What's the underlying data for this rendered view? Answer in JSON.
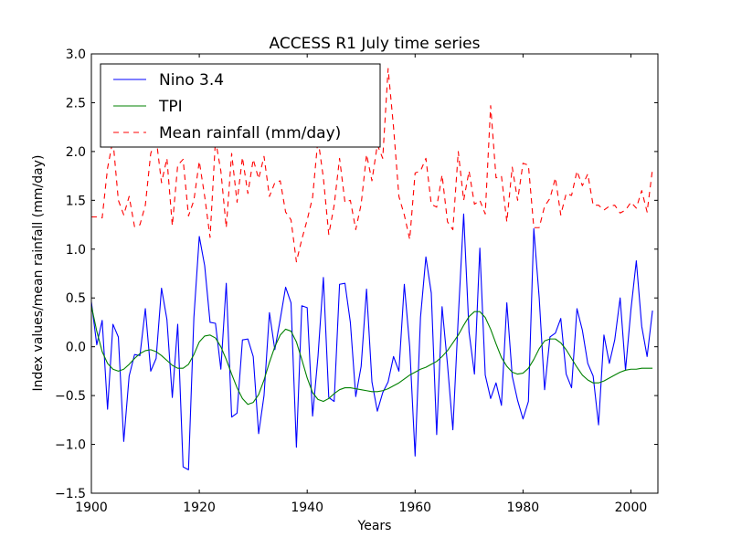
{
  "chart_data": {
    "type": "line",
    "title": "ACCESS R1 July time series",
    "xlabel": "Years",
    "ylabel": "Index values/mean rainfall (mm/day)",
    "xlim": [
      1900,
      2005
    ],
    "ylim": [
      -1.5,
      3.0
    ],
    "x_ticks": [
      1900,
      1920,
      1940,
      1960,
      1980,
      2000
    ],
    "y_ticks": [
      -1.5,
      -1.0,
      -0.5,
      0.0,
      0.5,
      1.0,
      1.5,
      2.0,
      2.5,
      3.0
    ],
    "x_tick_labels": [
      "1900",
      "1920",
      "1940",
      "1960",
      "1980",
      "2000"
    ],
    "y_tick_labels": [
      "−1.5",
      "−1.0",
      "−0.5",
      "0.0",
      "0.5",
      "1.0",
      "1.5",
      "2.0",
      "2.5",
      "3.0"
    ],
    "legend_position": "top-left",
    "grid": false,
    "x": [
      1900,
      1901,
      1902,
      1903,
      1904,
      1905,
      1906,
      1907,
      1908,
      1909,
      1910,
      1911,
      1912,
      1913,
      1914,
      1915,
      1916,
      1917,
      1918,
      1919,
      1920,
      1921,
      1922,
      1923,
      1924,
      1925,
      1926,
      1927,
      1928,
      1929,
      1930,
      1931,
      1932,
      1933,
      1934,
      1935,
      1936,
      1937,
      1938,
      1939,
      1940,
      1941,
      1942,
      1943,
      1944,
      1945,
      1946,
      1947,
      1948,
      1949,
      1950,
      1951,
      1952,
      1953,
      1954,
      1955,
      1956,
      1957,
      1958,
      1959,
      1960,
      1961,
      1962,
      1963,
      1964,
      1965,
      1966,
      1967,
      1968,
      1969,
      1970,
      1971,
      1972,
      1973,
      1974,
      1975,
      1976,
      1977,
      1978,
      1979,
      1980,
      1981,
      1982,
      1983,
      1984,
      1985,
      1986,
      1987,
      1988,
      1989,
      1990,
      1991,
      1992,
      1993,
      1994,
      1995,
      1996,
      1997,
      1998,
      1999,
      2000,
      2001,
      2002,
      2003,
      2004
    ],
    "series": [
      {
        "name": "Nino 3.4",
        "color": "#0000ff",
        "style": "solid",
        "values": [
          0.46,
          0.02,
          0.27,
          -0.64,
          0.23,
          0.1,
          -0.97,
          -0.3,
          -0.08,
          -0.09,
          0.39,
          -0.25,
          -0.12,
          0.6,
          0.28,
          -0.52,
          0.23,
          -1.23,
          -1.26,
          0.3,
          1.13,
          0.83,
          0.25,
          0.24,
          -0.23,
          0.65,
          -0.72,
          -0.68,
          0.07,
          0.08,
          -0.1,
          -0.89,
          -0.5,
          0.35,
          -0.03,
          0.28,
          0.61,
          0.45,
          -1.03,
          0.42,
          0.4,
          -0.71,
          -0.1,
          0.71,
          -0.52,
          -0.56,
          0.64,
          0.65,
          0.25,
          -0.51,
          -0.2,
          0.59,
          -0.36,
          -0.66,
          -0.47,
          -0.36,
          -0.1,
          -0.25,
          0.64,
          0.0,
          -1.12,
          0.3,
          0.92,
          0.55,
          -0.9,
          0.41,
          -0.18,
          -0.85,
          0.3,
          1.36,
          0.15,
          -0.28,
          1.01,
          -0.29,
          -0.53,
          -0.37,
          -0.6,
          0.45,
          -0.3,
          -0.55,
          -0.74,
          -0.56,
          1.21,
          0.5,
          -0.44,
          0.1,
          0.14,
          0.29,
          -0.28,
          -0.42,
          0.39,
          0.17,
          -0.17,
          -0.3,
          -0.8,
          0.12,
          -0.17,
          0.07,
          0.5,
          -0.24,
          0.38,
          0.88,
          0.21,
          -0.1,
          0.37
        ]
      },
      {
        "name": "TPI",
        "color": "#008000",
        "style": "solid",
        "values": [
          0.42,
          0.16,
          -0.05,
          -0.17,
          -0.23,
          -0.25,
          -0.23,
          -0.18,
          -0.12,
          -0.07,
          -0.04,
          -0.03,
          -0.05,
          -0.09,
          -0.14,
          -0.19,
          -0.22,
          -0.22,
          -0.18,
          -0.08,
          0.05,
          0.11,
          0.12,
          0.09,
          0.0,
          -0.13,
          -0.28,
          -0.42,
          -0.53,
          -0.59,
          -0.57,
          -0.49,
          -0.34,
          -0.16,
          0.0,
          0.12,
          0.18,
          0.16,
          0.05,
          -0.13,
          -0.32,
          -0.47,
          -0.54,
          -0.56,
          -0.53,
          -0.48,
          -0.44,
          -0.42,
          -0.42,
          -0.43,
          -0.44,
          -0.45,
          -0.46,
          -0.46,
          -0.45,
          -0.43,
          -0.4,
          -0.37,
          -0.33,
          -0.29,
          -0.26,
          -0.23,
          -0.21,
          -0.18,
          -0.15,
          -0.1,
          -0.04,
          0.04,
          0.12,
          0.22,
          0.31,
          0.36,
          0.36,
          0.3,
          0.18,
          0.03,
          -0.11,
          -0.2,
          -0.26,
          -0.28,
          -0.27,
          -0.22,
          -0.13,
          -0.02,
          0.06,
          0.08,
          0.08,
          0.04,
          -0.03,
          -0.12,
          -0.21,
          -0.29,
          -0.34,
          -0.37,
          -0.37,
          -0.35,
          -0.32,
          -0.29,
          -0.26,
          -0.24,
          -0.23,
          -0.23,
          -0.22,
          -0.22,
          -0.22
        ]
      },
      {
        "name": "Mean rainfall (mm/day)",
        "color": "#ff0000",
        "style": "dashed",
        "values": [
          1.33,
          1.33,
          1.32,
          1.83,
          2.12,
          1.5,
          1.35,
          1.54,
          1.23,
          1.25,
          1.45,
          1.98,
          2.14,
          1.68,
          1.93,
          1.24,
          1.86,
          1.92,
          1.34,
          1.5,
          1.9,
          1.54,
          1.12,
          2.12,
          1.8,
          1.22,
          1.98,
          1.48,
          1.94,
          1.57,
          1.92,
          1.72,
          1.95,
          1.54,
          1.68,
          1.7,
          1.38,
          1.3,
          0.87,
          1.1,
          1.3,
          1.53,
          2.13,
          1.73,
          1.15,
          1.45,
          1.93,
          1.48,
          1.5,
          1.2,
          1.46,
          1.97,
          1.7,
          2.07,
          1.93,
          2.85,
          2.25,
          1.54,
          1.35,
          1.1,
          1.78,
          1.8,
          1.93,
          1.46,
          1.43,
          1.76,
          1.28,
          1.2,
          2.0,
          1.5,
          1.8,
          1.46,
          1.5,
          1.36,
          2.47,
          1.73,
          1.75,
          1.28,
          1.84,
          1.5,
          1.88,
          1.86,
          1.22,
          1.22,
          1.44,
          1.52,
          1.73,
          1.35,
          1.57,
          1.55,
          1.8,
          1.65,
          1.77,
          1.45,
          1.45,
          1.4,
          1.44,
          1.45,
          1.37,
          1.4,
          1.48,
          1.42,
          1.6,
          1.38,
          1.82
        ]
      }
    ]
  }
}
